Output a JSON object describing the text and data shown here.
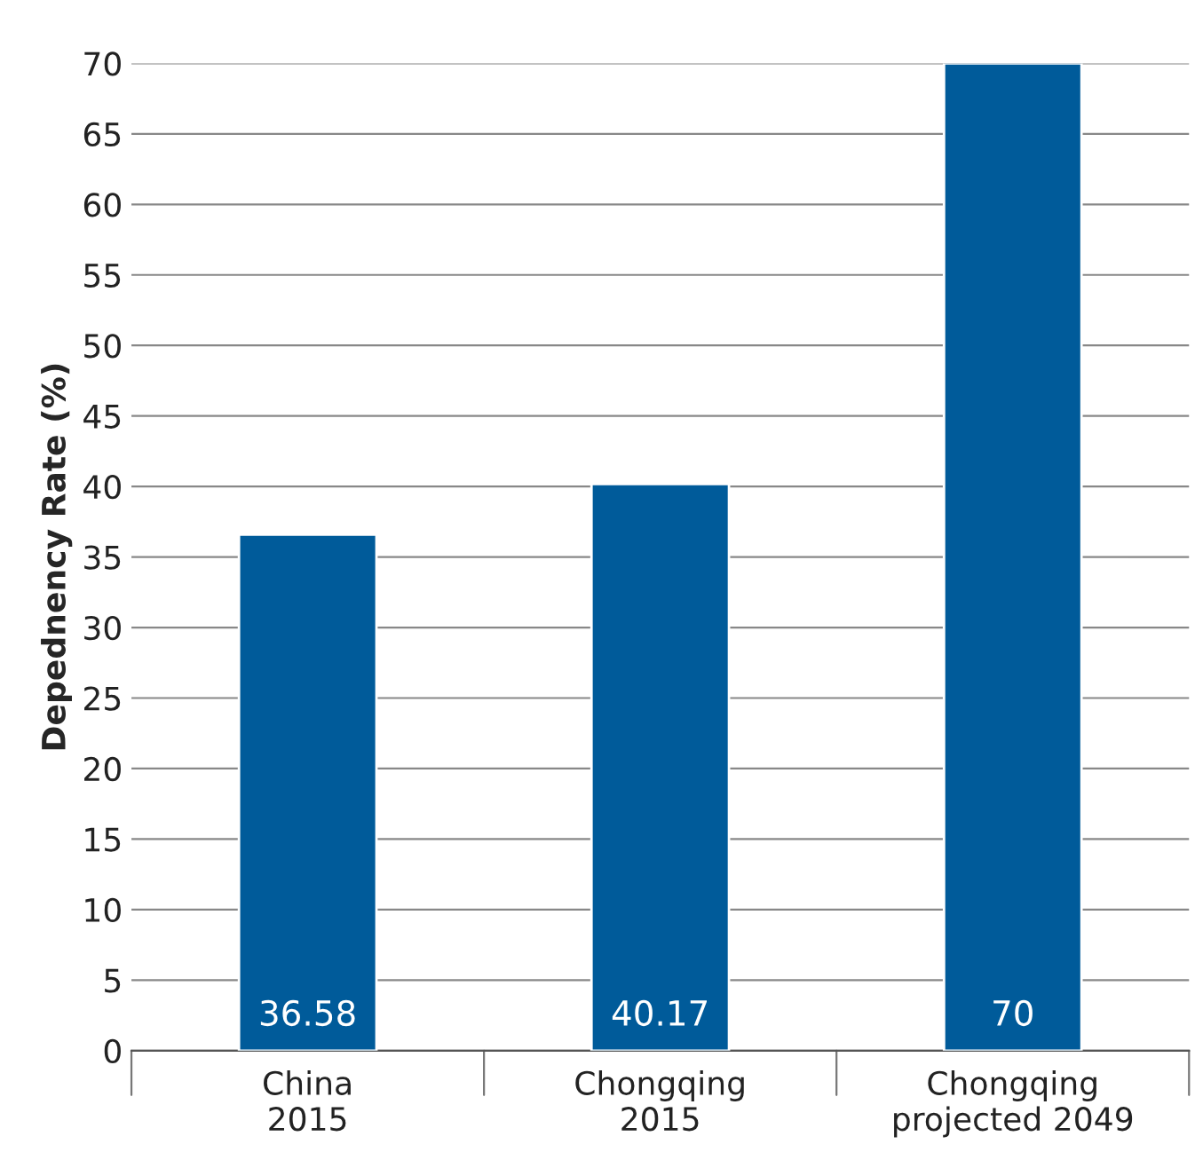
{
  "chart_data": {
    "type": "bar",
    "ylabel": "Depednency Rate (%)",
    "categories": [
      "China\n2015",
      "Chongqing\n2015",
      "Chongqing\nprojected 2049"
    ],
    "values": [
      36.58,
      40.17,
      70
    ],
    "color": "#005b9a",
    "ylim": [
      0,
      70
    ],
    "yticks": [
      0,
      5,
      10,
      15,
      20,
      25,
      30,
      35,
      40,
      45,
      50,
      55,
      60,
      65,
      70
    ],
    "grid": "y",
    "data_labels": true
  }
}
